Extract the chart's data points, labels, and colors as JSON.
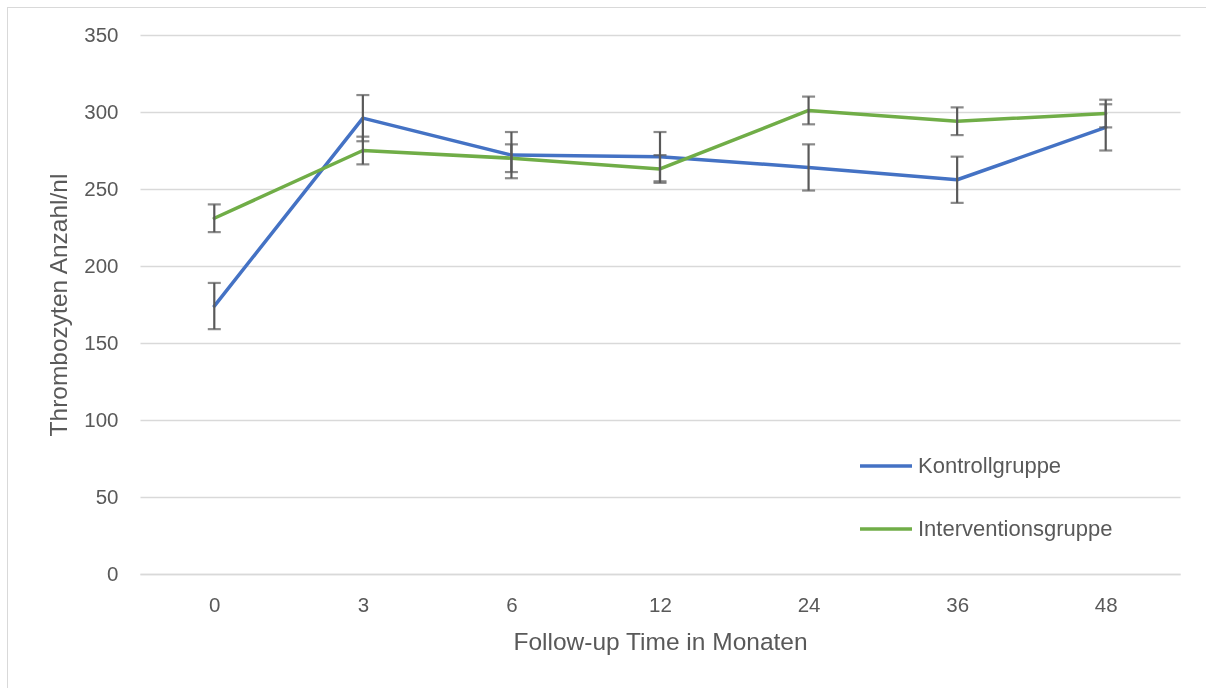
{
  "chart_data": {
    "type": "line",
    "xlabel": "Follow-up Time in Monaten",
    "ylabel": "Thrombozyten Anzahl/nl",
    "categories": [
      "0",
      "3",
      "6",
      "12",
      "24",
      "36",
      "48"
    ],
    "series": [
      {
        "name": "Kontrollgruppe",
        "color": "#4472c4",
        "values": [
          174,
          296,
          272,
          271,
          264,
          256,
          290
        ],
        "errors": [
          15,
          15,
          15,
          16,
          15,
          15,
          15
        ]
      },
      {
        "name": "Interventionsgruppe",
        "color": "#70ad47",
        "values": [
          231,
          275,
          270,
          263,
          301,
          294,
          299
        ],
        "errors": [
          9,
          9,
          9,
          9,
          9,
          9,
          9
        ]
      }
    ],
    "ylim": [
      0,
      350
    ],
    "yticks": [
      0,
      50,
      100,
      150,
      200,
      250,
      300,
      350
    ],
    "grid": "y",
    "legend": "bottom right"
  }
}
